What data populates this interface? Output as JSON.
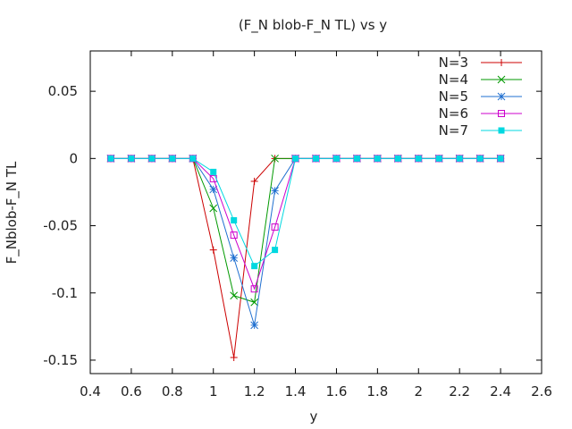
{
  "chart_data": {
    "type": "line",
    "title": "(F_N blob-F_N TL) vs y",
    "xlabel": "y",
    "ylabel": "F_Nblob-F_N TL",
    "xlim": [
      0.4,
      2.6
    ],
    "ylim": [
      -0.16,
      0.08
    ],
    "xticks": [
      "0.4",
      "0.6",
      "0.8",
      "1",
      "1.2",
      "1.4",
      "1.6",
      "1.8",
      "2",
      "2.2",
      "2.4",
      "2.6"
    ],
    "yticks": [
      "0.05",
      "0",
      "-0.05",
      "-0.1",
      "-0.15"
    ],
    "grid": false,
    "legend": "top-right",
    "x": [
      0.5,
      0.6,
      0.7,
      0.8,
      0.9,
      1.0,
      1.1,
      1.2,
      1.3,
      1.4,
      1.5,
      1.6,
      1.7,
      1.8,
      1.9,
      2.0,
      2.1,
      2.2,
      2.3,
      2.4
    ],
    "series": [
      {
        "name": "N=3",
        "color": "#cc0000",
        "marker": "plus",
        "values": [
          0,
          0,
          0,
          0,
          0,
          -0.068,
          -0.148,
          -0.017,
          0,
          0,
          0,
          0,
          0,
          0,
          0,
          0,
          0,
          0,
          0,
          0
        ]
      },
      {
        "name": "N=4",
        "color": "#009900",
        "marker": "cross",
        "values": [
          0,
          0,
          0,
          0,
          0,
          -0.037,
          -0.102,
          -0.107,
          0,
          0,
          0,
          0,
          0,
          0,
          0,
          0,
          0,
          0,
          0,
          0
        ]
      },
      {
        "name": "N=5",
        "color": "#1f6fd0",
        "marker": "star",
        "values": [
          0,
          0,
          0,
          0,
          0,
          -0.023,
          -0.074,
          -0.124,
          -0.024,
          0,
          0,
          0,
          0,
          0,
          0,
          0,
          0,
          0,
          0,
          0
        ]
      },
      {
        "name": "N=6",
        "color": "#cc00cc",
        "marker": "open-square",
        "values": [
          0,
          0,
          0,
          0,
          0,
          -0.015,
          -0.057,
          -0.097,
          -0.051,
          0,
          0,
          0,
          0,
          0,
          0,
          0,
          0,
          0,
          0,
          0
        ]
      },
      {
        "name": "N=7",
        "color": "#00d8e0",
        "marker": "filled-square",
        "values": [
          0,
          0,
          0,
          0,
          0,
          -0.01,
          -0.046,
          -0.08,
          -0.068,
          0,
          0,
          0,
          0,
          0,
          0,
          0,
          0,
          0,
          0,
          0
        ]
      }
    ]
  }
}
